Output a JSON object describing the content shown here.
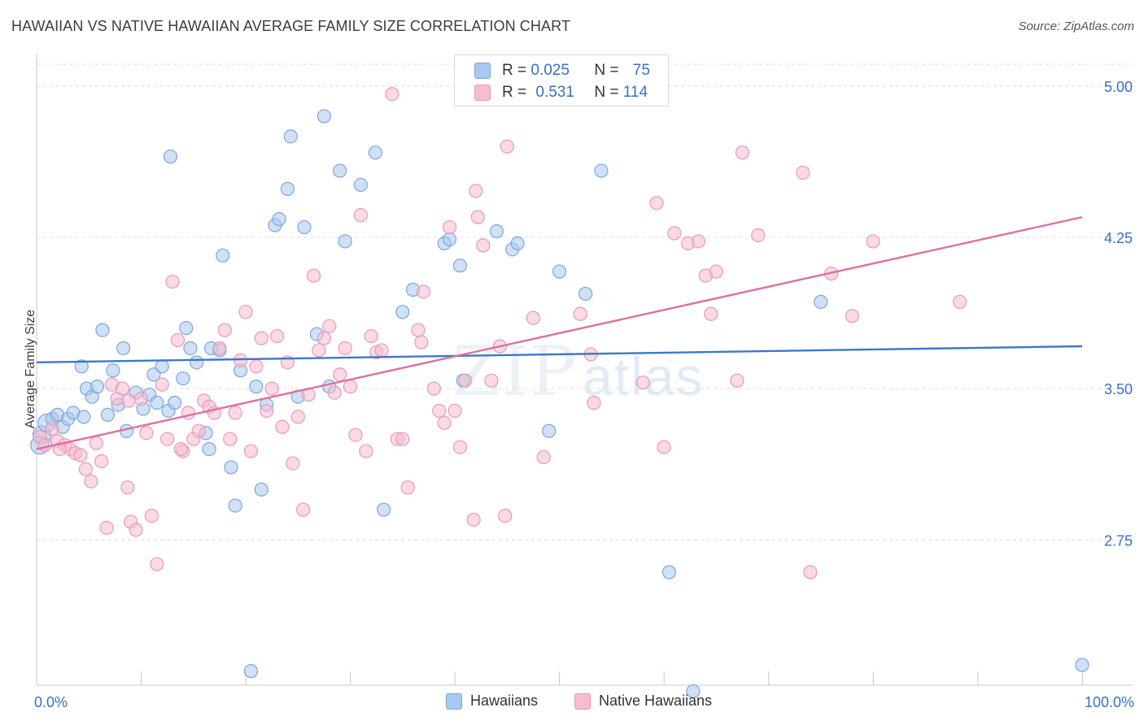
{
  "header": {
    "title": "HAWAIIAN VS NATIVE HAWAIIAN AVERAGE FAMILY SIZE CORRELATION CHART",
    "source": "Source: ZipAtlas.com"
  },
  "watermark": {
    "zip": "ZIP",
    "atlas": "atlas"
  },
  "colors": {
    "blue_fill": "#a9c8ef",
    "blue_stroke": "#7aa6dd",
    "blue_line": "#3b78c9",
    "pink_fill": "#f7bcd0",
    "pink_stroke": "#e899b5",
    "pink_line": "#e0709a",
    "axis_label": "#3a6fc4",
    "grid": "#dcdcdc"
  },
  "legend": {
    "rows": [
      {
        "r_label": "R = ",
        "r_value": "0.025",
        "n_label": "N = ",
        "n_value": "75"
      },
      {
        "r_label": "R = ",
        "r_value": "0.531",
        "n_label": "N = ",
        "n_value": "114"
      }
    ],
    "bottom": [
      "Hawaiians",
      "Native Hawaiians"
    ]
  },
  "chart_data": {
    "type": "scatter",
    "title": "HAWAIIAN VS NATIVE HAWAIIAN AVERAGE FAMILY SIZE CORRELATION CHART",
    "xlabel": "",
    "ylabel": "Average Family Size",
    "xlim": [
      0,
      100
    ],
    "ylim": [
      2.03,
      5.12
    ],
    "x_tick_labels": [
      "0.0%",
      "100.0%"
    ],
    "y_ticks": [
      2.75,
      3.5,
      4.25,
      5.0
    ],
    "y_tick_labels": [
      "2.75",
      "3.50",
      "4.25",
      "5.00"
    ],
    "grid": true,
    "legend_position": "top-center",
    "series": [
      {
        "name": "Hawaiians",
        "r": 0.025,
        "n": 75,
        "trend": {
          "x": [
            0,
            100
          ],
          "y": [
            3.63,
            3.71
          ]
        },
        "points": [
          [
            0.5,
            3.27
          ],
          [
            1,
            3.33
          ],
          [
            1.5,
            3.35
          ],
          [
            2,
            3.37
          ],
          [
            2.5,
            3.31
          ],
          [
            3,
            3.35
          ],
          [
            3.5,
            3.38
          ],
          [
            4.3,
            3.61
          ],
          [
            4.8,
            3.5
          ],
          [
            5.3,
            3.46
          ],
          [
            5.8,
            3.51
          ],
          [
            6.3,
            3.79
          ],
          [
            6.8,
            3.37
          ],
          [
            7.3,
            3.59
          ],
          [
            7.8,
            3.42
          ],
          [
            8.3,
            3.7
          ],
          [
            8.6,
            3.29
          ],
          [
            9.5,
            3.48
          ],
          [
            10.2,
            3.4
          ],
          [
            10.8,
            3.47
          ],
          [
            11.2,
            3.57
          ],
          [
            11.5,
            3.43
          ],
          [
            12,
            3.61
          ],
          [
            12.6,
            3.39
          ],
          [
            12.8,
            4.65
          ],
          [
            13.2,
            3.43
          ],
          [
            14,
            3.55
          ],
          [
            14.3,
            3.8
          ],
          [
            14.7,
            3.7
          ],
          [
            15.3,
            3.63
          ],
          [
            16.2,
            3.28
          ],
          [
            16.5,
            3.2
          ],
          [
            16.7,
            3.7
          ],
          [
            17.5,
            3.69
          ],
          [
            17.8,
            4.16
          ],
          [
            18.6,
            3.11
          ],
          [
            19,
            2.92
          ],
          [
            19.5,
            3.59
          ],
          [
            20.5,
            2.1
          ],
          [
            21,
            3.51
          ],
          [
            21.5,
            3.0
          ],
          [
            22,
            3.42
          ],
          [
            22.8,
            4.31
          ],
          [
            23.2,
            4.34
          ],
          [
            24,
            4.49
          ],
          [
            24.3,
            4.75
          ],
          [
            25,
            3.46
          ],
          [
            25.6,
            4.3
          ],
          [
            26.8,
            3.77
          ],
          [
            27.5,
            4.85
          ],
          [
            28,
            3.51
          ],
          [
            29,
            4.58
          ],
          [
            29.5,
            4.23
          ],
          [
            31,
            4.51
          ],
          [
            32.4,
            4.67
          ],
          [
            33.2,
            2.9
          ],
          [
            35,
            3.88
          ],
          [
            36,
            3.99
          ],
          [
            39,
            4.22
          ],
          [
            39.5,
            4.24
          ],
          [
            40.5,
            4.11
          ],
          [
            40.8,
            3.54
          ],
          [
            44,
            4.28
          ],
          [
            45.5,
            4.19
          ],
          [
            46,
            4.22
          ],
          [
            49,
            3.29
          ],
          [
            50,
            4.08
          ],
          [
            52.5,
            3.97
          ],
          [
            54,
            4.58
          ],
          [
            60.5,
            2.59
          ],
          [
            62.8,
            2.0
          ],
          [
            75,
            3.93
          ],
          [
            100,
            2.13
          ],
          [
            0.3,
            3.22
          ],
          [
            4.5,
            3.36
          ]
        ]
      },
      {
        "name": "Native Hawaiians",
        "r": 0.531,
        "n": 114,
        "trend": {
          "x": [
            0,
            100
          ],
          "y": [
            3.2,
            4.35
          ]
        },
        "points": [
          [
            0.3,
            3.26
          ],
          [
            0.8,
            3.22
          ],
          [
            1.5,
            3.3
          ],
          [
            2,
            3.24
          ],
          [
            2.7,
            3.22
          ],
          [
            3.2,
            3.2
          ],
          [
            3.7,
            3.18
          ],
          [
            4.2,
            3.17
          ],
          [
            4.7,
            3.1
          ],
          [
            5.2,
            3.04
          ],
          [
            5.7,
            3.23
          ],
          [
            6.2,
            3.14
          ],
          [
            6.7,
            2.81
          ],
          [
            7.2,
            3.52
          ],
          [
            7.7,
            3.45
          ],
          [
            8.2,
            3.5
          ],
          [
            8.7,
            3.01
          ],
          [
            9,
            2.84
          ],
          [
            9.5,
            2.8
          ],
          [
            10,
            3.45
          ],
          [
            10.5,
            3.28
          ],
          [
            11,
            2.87
          ],
          [
            11.5,
            2.63
          ],
          [
            12,
            3.52
          ],
          [
            12.5,
            3.25
          ],
          [
            13,
            4.03
          ],
          [
            13.5,
            3.74
          ],
          [
            14,
            3.19
          ],
          [
            14.5,
            3.38
          ],
          [
            15,
            3.25
          ],
          [
            15.5,
            3.29
          ],
          [
            16,
            3.44
          ],
          [
            16.5,
            3.41
          ],
          [
            17,
            3.38
          ],
          [
            17.5,
            3.7
          ],
          [
            18,
            3.79
          ],
          [
            18.5,
            3.25
          ],
          [
            19,
            3.38
          ],
          [
            19.5,
            3.64
          ],
          [
            20,
            3.88
          ],
          [
            20.5,
            3.19
          ],
          [
            21,
            3.61
          ],
          [
            21.5,
            3.75
          ],
          [
            22,
            3.39
          ],
          [
            22.5,
            3.5
          ],
          [
            23,
            3.76
          ],
          [
            23.5,
            3.31
          ],
          [
            24,
            3.63
          ],
          [
            24.5,
            3.13
          ],
          [
            25,
            3.36
          ],
          [
            25.5,
            2.9
          ],
          [
            26,
            3.47
          ],
          [
            26.5,
            4.06
          ],
          [
            27,
            3.69
          ],
          [
            27.5,
            3.75
          ],
          [
            28,
            3.81
          ],
          [
            28.5,
            3.48
          ],
          [
            29,
            3.57
          ],
          [
            29.5,
            3.7
          ],
          [
            30,
            3.51
          ],
          [
            30.5,
            3.27
          ],
          [
            31,
            4.36
          ],
          [
            31.5,
            3.19
          ],
          [
            32,
            3.76
          ],
          [
            32.5,
            3.68
          ],
          [
            33,
            3.69
          ],
          [
            34,
            4.96
          ],
          [
            34.5,
            3.25
          ],
          [
            35,
            3.25
          ],
          [
            35.5,
            3.01
          ],
          [
            36.5,
            3.79
          ],
          [
            37,
            3.98
          ],
          [
            38,
            3.5
          ],
          [
            38.5,
            3.39
          ],
          [
            39,
            3.33
          ],
          [
            39.5,
            4.3
          ],
          [
            40,
            3.39
          ],
          [
            40.5,
            3.21
          ],
          [
            41,
            3.54
          ],
          [
            41.8,
            2.85
          ],
          [
            42,
            4.48
          ],
          [
            42.2,
            4.35
          ],
          [
            42.7,
            4.21
          ],
          [
            43.5,
            3.54
          ],
          [
            44.3,
            3.71
          ],
          [
            45,
            4.7
          ],
          [
            47.5,
            3.85
          ],
          [
            48.5,
            3.16
          ],
          [
            52,
            3.87
          ],
          [
            53,
            3.67
          ],
          [
            53.3,
            3.43
          ],
          [
            58,
            3.53
          ],
          [
            59.3,
            4.42
          ],
          [
            60,
            3.21
          ],
          [
            61,
            4.27
          ],
          [
            62.3,
            4.22
          ],
          [
            63.3,
            4.23
          ],
          [
            64,
            4.06
          ],
          [
            64.5,
            3.87
          ],
          [
            65,
            4.08
          ],
          [
            67,
            3.54
          ],
          [
            67.5,
            4.67
          ],
          [
            69,
            4.26
          ],
          [
            73.3,
            4.57
          ],
          [
            74,
            2.59
          ],
          [
            76,
            4.07
          ],
          [
            78,
            3.86
          ],
          [
            80,
            4.23
          ],
          [
            88.3,
            3.93
          ],
          [
            2.2,
            3.2
          ],
          [
            8.8,
            3.44
          ],
          [
            13.8,
            3.2
          ],
          [
            36.8,
            3.73
          ],
          [
            44.8,
            2.87
          ]
        ]
      }
    ]
  }
}
